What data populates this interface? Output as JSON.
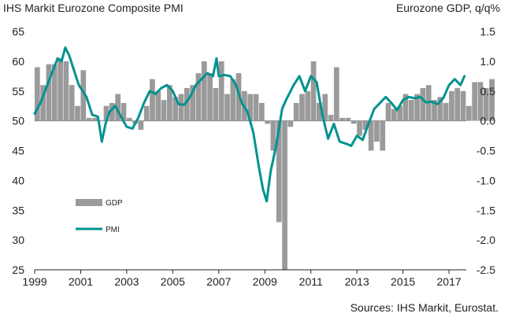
{
  "titles": {
    "left": "IHS Markit Eurozone Composite PMI",
    "right": "Eurozone GDP, q/q%",
    "source": "Sources: IHS Markit, Eurostat."
  },
  "colors": {
    "gdp": "#9a9a9a",
    "pmi": "#00928f",
    "axis": "#222222"
  },
  "chart_data": {
    "type": "bar+line",
    "x_ticks": [
      "1999",
      "2001",
      "2003",
      "2005",
      "2007",
      "2009",
      "2011",
      "2013",
      "2015",
      "2017"
    ],
    "y_left": {
      "ticks": [
        "65",
        "60",
        "55",
        "50",
        "45",
        "40",
        "35",
        "30",
        "25"
      ],
      "range": [
        25,
        65
      ]
    },
    "y_right": {
      "ticks": [
        "1.5",
        "1.0",
        "0.5",
        "0.0",
        "-0.5",
        "-1.0",
        "-1.5",
        "-2.0",
        "-2.5"
      ],
      "range": [
        -2.5,
        1.5
      ]
    },
    "series": [
      {
        "name": "GDP",
        "type": "bar",
        "axis": "right",
        "start": 1999.0,
        "step": 0.25,
        "values": [
          0.9,
          0.6,
          0.95,
          0.95,
          1.05,
          1.0,
          0.6,
          0.25,
          0.85,
          0.05,
          0.05,
          0.0,
          0.25,
          0.3,
          0.45,
          0.3,
          0.05,
          -0.05,
          -0.15,
          0.25,
          0.7,
          0.5,
          0.35,
          0.6,
          0.4,
          0.45,
          0.55,
          0.6,
          0.8,
          1.0,
          0.8,
          0.55,
          1.0,
          0.45,
          0.7,
          0.8,
          0.5,
          0.45,
          0.45,
          0.3,
          -0.05,
          -0.5,
          -1.7,
          -2.5,
          -0.1,
          0.3,
          0.45,
          0.5,
          1.0,
          0.3,
          0.45,
          0.1,
          0.9,
          0.05,
          0.05,
          -0.05,
          -0.25,
          -0.15,
          -0.5,
          -0.35,
          -0.5,
          0.3,
          0.2,
          0.25,
          0.45,
          0.35,
          0.45,
          0.55,
          0.6,
          0.35,
          0.4,
          0.3,
          0.5,
          0.55,
          0.5,
          0.25,
          0.65,
          0.65,
          0.55,
          0.7
        ]
      },
      {
        "name": "PMI",
        "type": "line",
        "axis": "left",
        "points": [
          [
            1999.0,
            51.2
          ],
          [
            1999.25,
            53
          ],
          [
            1999.5,
            55.5
          ],
          [
            1999.75,
            58
          ],
          [
            2000.0,
            60.5
          ],
          [
            2000.17,
            60
          ],
          [
            2000.33,
            62.3
          ],
          [
            2000.5,
            61
          ],
          [
            2000.75,
            58
          ],
          [
            2000.92,
            56
          ],
          [
            2001.25,
            54
          ],
          [
            2001.5,
            51
          ],
          [
            2001.75,
            50.7
          ],
          [
            2001.92,
            46.5
          ],
          [
            2002.08,
            49.5
          ],
          [
            2002.25,
            51.5
          ],
          [
            2002.5,
            52.5
          ],
          [
            2002.75,
            50.7
          ],
          [
            2003.0,
            49
          ],
          [
            2003.25,
            48.7
          ],
          [
            2003.5,
            50.5
          ],
          [
            2003.75,
            53
          ],
          [
            2004.0,
            55
          ],
          [
            2004.25,
            54.5
          ],
          [
            2004.5,
            55.5
          ],
          [
            2004.75,
            56
          ],
          [
            2005.0,
            55
          ],
          [
            2005.25,
            52.8
          ],
          [
            2005.5,
            52.7
          ],
          [
            2005.75,
            54
          ],
          [
            2006.0,
            56
          ],
          [
            2006.25,
            57
          ],
          [
            2006.5,
            58
          ],
          [
            2006.75,
            57.5
          ],
          [
            2006.9,
            60.5
          ],
          [
            2007.0,
            57.5
          ],
          [
            2007.25,
            57.7
          ],
          [
            2007.5,
            57.5
          ],
          [
            2007.75,
            56
          ],
          [
            2008.0,
            53
          ],
          [
            2008.25,
            51.5
          ],
          [
            2008.5,
            48
          ],
          [
            2008.75,
            42
          ],
          [
            2008.92,
            38.5
          ],
          [
            2009.08,
            36.5
          ],
          [
            2009.25,
            41.5
          ],
          [
            2009.5,
            46
          ],
          [
            2009.75,
            52
          ],
          [
            2009.92,
            53.5
          ],
          [
            2010.25,
            56
          ],
          [
            2010.5,
            57.5
          ],
          [
            2010.75,
            55
          ],
          [
            2011.0,
            57.5
          ],
          [
            2011.25,
            56.5
          ],
          [
            2011.5,
            51
          ],
          [
            2011.75,
            47
          ],
          [
            2012.0,
            49.5
          ],
          [
            2012.25,
            46.5
          ],
          [
            2012.5,
            46.2
          ],
          [
            2012.75,
            45.8
          ],
          [
            2013.0,
            47.5
          ],
          [
            2013.25,
            46.8
          ],
          [
            2013.5,
            49.5
          ],
          [
            2013.75,
            52
          ],
          [
            2014.0,
            53
          ],
          [
            2014.25,
            54
          ],
          [
            2014.5,
            53
          ],
          [
            2014.75,
            51.8
          ],
          [
            2015.0,
            53.5
          ],
          [
            2015.25,
            54
          ],
          [
            2015.5,
            53.8
          ],
          [
            2015.75,
            54
          ],
          [
            2016.0,
            53.1
          ],
          [
            2016.25,
            53.2
          ],
          [
            2016.5,
            52.8
          ],
          [
            2016.75,
            53.8
          ],
          [
            2017.0,
            56
          ],
          [
            2017.25,
            57
          ],
          [
            2017.5,
            56
          ],
          [
            2017.67,
            57.5
          ]
        ]
      }
    ],
    "legend": [
      {
        "label": "GDP",
        "kind": "bar"
      },
      {
        "label": "PMI",
        "kind": "line"
      }
    ],
    "legend_placement": "left-middle",
    "grid": false
  }
}
